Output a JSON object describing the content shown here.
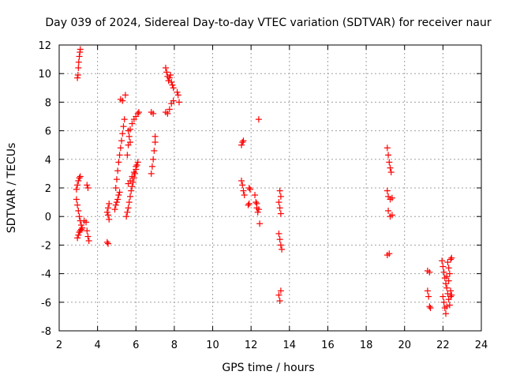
{
  "chart_data": {
    "type": "scatter",
    "title": "Day 039 of 2024, Sidereal Day-to-day VTEC variation (SDTVAR) for receiver naur",
    "xlabel": "GPS time / hours",
    "ylabel": "SDTVAR / TECUs",
    "xlim": [
      2,
      24
    ],
    "ylim": [
      -8,
      12
    ],
    "xticks": [
      "2",
      "4",
      "6",
      "8",
      "10",
      "12",
      "14",
      "16",
      "18",
      "20",
      "22",
      "24"
    ],
    "yticks": [
      "-8",
      "-6",
      "-4",
      "-2",
      "0",
      "2",
      "4",
      "6",
      "8",
      "10",
      "12"
    ],
    "grid": true,
    "marker": "+",
    "color": "#ff0000",
    "series": [
      {
        "name": "SDTVAR",
        "points": [
          [
            2.95,
            9.7
          ],
          [
            2.98,
            9.9
          ],
          [
            3.0,
            10.4
          ],
          [
            3.02,
            10.8
          ],
          [
            3.05,
            11.2
          ],
          [
            3.08,
            11.5
          ],
          [
            3.1,
            11.7
          ],
          [
            2.9,
            1.9
          ],
          [
            2.95,
            2.2
          ],
          [
            3.0,
            2.5
          ],
          [
            3.05,
            2.7
          ],
          [
            3.1,
            2.8
          ],
          [
            2.9,
            1.2
          ],
          [
            2.95,
            0.8
          ],
          [
            3.0,
            0.4
          ],
          [
            3.05,
            0.0
          ],
          [
            3.1,
            -0.3
          ],
          [
            3.15,
            -0.6
          ],
          [
            3.2,
            -0.8
          ],
          [
            2.95,
            -1.5
          ],
          [
            3.0,
            -1.3
          ],
          [
            3.05,
            -1.1
          ],
          [
            3.1,
            -1.0
          ],
          [
            3.15,
            -0.9
          ],
          [
            3.3,
            -0.3
          ],
          [
            3.4,
            -0.4
          ],
          [
            3.45,
            -1.0
          ],
          [
            3.5,
            -1.4
          ],
          [
            3.55,
            -1.7
          ],
          [
            3.45,
            2.2
          ],
          [
            3.5,
            2.0
          ],
          [
            4.5,
            -1.8
          ],
          [
            4.55,
            -1.9
          ],
          [
            4.5,
            0.3
          ],
          [
            4.55,
            0.1
          ],
          [
            4.6,
            -0.2
          ],
          [
            4.55,
            0.6
          ],
          [
            4.6,
            0.9
          ],
          [
            4.9,
            0.5
          ],
          [
            4.95,
            0.8
          ],
          [
            5.0,
            1.0
          ],
          [
            5.05,
            1.2
          ],
          [
            5.1,
            1.5
          ],
          [
            5.15,
            1.7
          ],
          [
            4.95,
            2.0
          ],
          [
            5.0,
            2.6
          ],
          [
            5.05,
            3.2
          ],
          [
            5.1,
            3.8
          ],
          [
            5.15,
            4.3
          ],
          [
            5.2,
            4.8
          ],
          [
            5.25,
            5.3
          ],
          [
            5.3,
            5.8
          ],
          [
            5.35,
            6.3
          ],
          [
            5.4,
            6.8
          ],
          [
            5.2,
            8.2
          ],
          [
            5.3,
            8.1
          ],
          [
            5.45,
            8.5
          ],
          [
            5.5,
            0.0
          ],
          [
            5.55,
            0.3
          ],
          [
            5.6,
            0.6
          ],
          [
            5.65,
            1.0
          ],
          [
            5.7,
            1.4
          ],
          [
            5.75,
            1.8
          ],
          [
            5.8,
            2.1
          ],
          [
            5.85,
            2.4
          ],
          [
            5.9,
            2.7
          ],
          [
            5.95,
            3.0
          ],
          [
            6.0,
            3.3
          ],
          [
            6.05,
            3.6
          ],
          [
            6.1,
            3.8
          ],
          [
            5.6,
            2.3
          ],
          [
            5.7,
            2.5
          ],
          [
            5.8,
            2.8
          ],
          [
            5.9,
            3.1
          ],
          [
            6.0,
            3.5
          ],
          [
            5.55,
            4.3
          ],
          [
            5.6,
            5.0
          ],
          [
            5.65,
            5.6
          ],
          [
            5.7,
            6.1
          ],
          [
            5.8,
            6.5
          ],
          [
            5.9,
            6.8
          ],
          [
            6.0,
            7.0
          ],
          [
            6.1,
            7.2
          ],
          [
            6.15,
            7.3
          ],
          [
            5.6,
            6.0
          ],
          [
            5.7,
            5.2
          ],
          [
            6.8,
            3.0
          ],
          [
            6.85,
            3.5
          ],
          [
            6.9,
            4.0
          ],
          [
            6.95,
            4.6
          ],
          [
            7.0,
            5.2
          ],
          [
            7.0,
            5.6
          ],
          [
            6.8,
            7.3
          ],
          [
            6.9,
            7.2
          ],
          [
            7.55,
            10.4
          ],
          [
            7.6,
            10.1
          ],
          [
            7.65,
            9.8
          ],
          [
            7.7,
            9.5
          ],
          [
            7.75,
            9.7
          ],
          [
            7.8,
            9.9
          ],
          [
            7.85,
            9.4
          ],
          [
            7.9,
            9.2
          ],
          [
            7.95,
            9.0
          ],
          [
            7.55,
            7.3
          ],
          [
            7.65,
            7.2
          ],
          [
            7.75,
            7.5
          ],
          [
            7.85,
            7.9
          ],
          [
            7.95,
            8.1
          ],
          [
            8.15,
            8.7
          ],
          [
            8.2,
            8.5
          ],
          [
            8.25,
            8.0
          ],
          [
            11.5,
            5.0
          ],
          [
            11.55,
            5.2
          ],
          [
            11.6,
            5.3
          ],
          [
            11.5,
            2.5
          ],
          [
            11.55,
            2.2
          ],
          [
            11.6,
            1.8
          ],
          [
            11.65,
            1.5
          ],
          [
            11.9,
            2.0
          ],
          [
            11.95,
            1.9
          ],
          [
            11.85,
            0.8
          ],
          [
            11.9,
            0.9
          ],
          [
            12.2,
            1.5
          ],
          [
            12.25,
            1.0
          ],
          [
            12.3,
            0.6
          ],
          [
            12.35,
            0.3
          ],
          [
            12.4,
            0.5
          ],
          [
            12.45,
            -0.5
          ],
          [
            12.3,
            0.9
          ],
          [
            12.4,
            6.8
          ],
          [
            13.5,
            1.8
          ],
          [
            13.55,
            1.4
          ],
          [
            13.45,
            1.0
          ],
          [
            13.5,
            0.6
          ],
          [
            13.55,
            0.2
          ],
          [
            13.45,
            -1.2
          ],
          [
            13.5,
            -1.6
          ],
          [
            13.55,
            -2.0
          ],
          [
            13.6,
            -2.3
          ],
          [
            13.45,
            -5.5
          ],
          [
            13.5,
            -5.9
          ],
          [
            13.55,
            -5.2
          ],
          [
            19.1,
            4.8
          ],
          [
            19.15,
            4.3
          ],
          [
            19.2,
            3.8
          ],
          [
            19.25,
            3.4
          ],
          [
            19.3,
            3.1
          ],
          [
            19.1,
            1.8
          ],
          [
            19.15,
            1.4
          ],
          [
            19.25,
            1.2
          ],
          [
            19.35,
            1.3
          ],
          [
            19.15,
            0.4
          ],
          [
            19.25,
            0.0
          ],
          [
            19.35,
            0.1
          ],
          [
            19.1,
            -2.7
          ],
          [
            19.2,
            -2.6
          ],
          [
            21.2,
            -3.8
          ],
          [
            21.3,
            -3.9
          ],
          [
            21.2,
            -5.2
          ],
          [
            21.25,
            -5.6
          ],
          [
            21.3,
            -6.3
          ],
          [
            21.35,
            -6.4
          ],
          [
            21.95,
            -3.1
          ],
          [
            22.0,
            -3.5
          ],
          [
            22.05,
            -3.9
          ],
          [
            22.1,
            -4.3
          ],
          [
            22.15,
            -4.7
          ],
          [
            22.2,
            -5.0
          ],
          [
            22.25,
            -5.4
          ],
          [
            22.3,
            -5.8
          ],
          [
            22.35,
            -6.2
          ],
          [
            22.4,
            -5.6
          ],
          [
            22.0,
            -5.6
          ],
          [
            22.05,
            -6.0
          ],
          [
            22.1,
            -6.4
          ],
          [
            22.15,
            -6.8
          ],
          [
            22.2,
            -6.3
          ],
          [
            22.25,
            -3.2
          ],
          [
            22.3,
            -3.6
          ],
          [
            22.35,
            -4.0
          ],
          [
            22.4,
            -3.0
          ],
          [
            22.45,
            -2.9
          ],
          [
            22.2,
            -4.2
          ],
          [
            22.3,
            -4.5
          ],
          [
            22.4,
            -5.2
          ],
          [
            22.45,
            -5.5
          ]
        ]
      }
    ]
  }
}
